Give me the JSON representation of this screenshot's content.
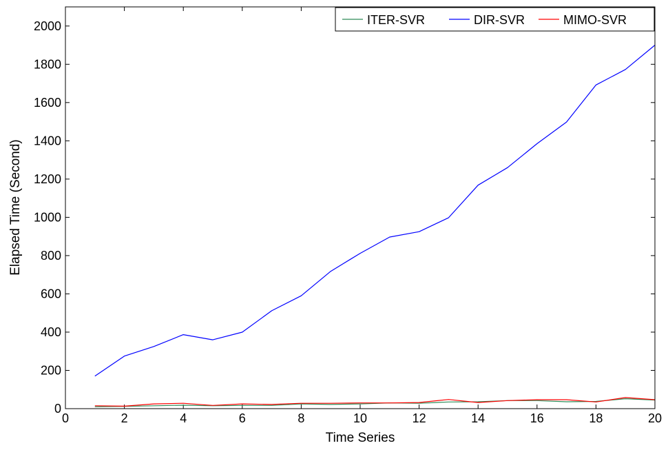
{
  "chart_data": {
    "type": "line",
    "title": "",
    "xlabel": "Time Series",
    "ylabel": "Elapsed Time (Second)",
    "xlim": [
      0,
      20
    ],
    "ylim": [
      0,
      2100
    ],
    "xticks": [
      0,
      2,
      4,
      6,
      8,
      10,
      12,
      14,
      16,
      18,
      20
    ],
    "yticks": [
      0,
      200,
      400,
      600,
      800,
      1000,
      1200,
      1400,
      1600,
      1800,
      2000
    ],
    "grid": false,
    "legend_position": "top-right",
    "x": [
      1,
      2,
      3,
      4,
      5,
      6,
      7,
      8,
      9,
      10,
      11,
      12,
      13,
      14,
      15,
      16,
      17,
      18,
      19,
      20
    ],
    "series": [
      {
        "name": "ITER-SVR",
        "color": "#2e8b57",
        "values": [
          10,
          12,
          15,
          18,
          15,
          17,
          17,
          25,
          22,
          25,
          30,
          28,
          35,
          36,
          42,
          42,
          36,
          38,
          52,
          45
        ]
      },
      {
        "name": "DIR-SVR",
        "color": "#0000ff",
        "values": [
          170,
          275,
          325,
          387,
          360,
          400,
          512,
          590,
          718,
          812,
          897,
          925,
          998,
          1168,
          1260,
          1385,
          1498,
          1692,
          1773,
          1900
        ]
      },
      {
        "name": "MIMO-SVR",
        "color": "#ff0000",
        "values": [
          15,
          13,
          25,
          28,
          17,
          25,
          22,
          28,
          28,
          30,
          30,
          32,
          48,
          32,
          42,
          47,
          47,
          35,
          58,
          47
        ]
      }
    ]
  }
}
